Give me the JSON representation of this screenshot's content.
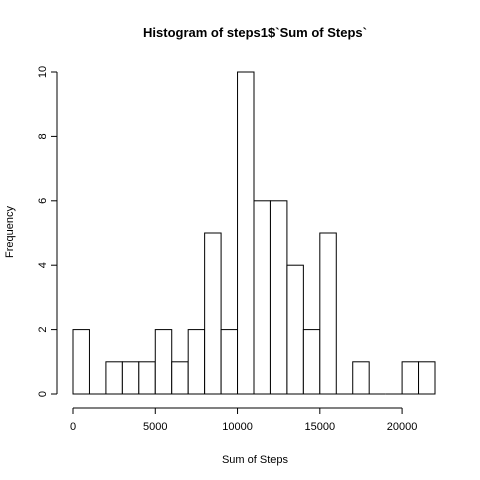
{
  "chart_data": {
    "type": "bar",
    "title": "Histogram of steps1$`Sum of Steps`",
    "xlabel": "Sum of Steps",
    "ylabel": "Frequency",
    "bin_width": 1000,
    "bin_starts": [
      0,
      1000,
      2000,
      3000,
      4000,
      5000,
      6000,
      7000,
      8000,
      9000,
      10000,
      11000,
      12000,
      13000,
      14000,
      15000,
      16000,
      17000,
      18000,
      19000,
      20000,
      21000
    ],
    "values": [
      2,
      0,
      1,
      1,
      1,
      2,
      1,
      2,
      5,
      2,
      10,
      6,
      6,
      4,
      2,
      5,
      0,
      1,
      0,
      0,
      1,
      1
    ],
    "xlim": [
      0,
      22000
    ],
    "ylim": [
      0,
      10
    ],
    "x_ticks": [
      0,
      5000,
      10000,
      15000,
      20000
    ],
    "y_ticks": [
      0,
      2,
      4,
      6,
      8,
      10
    ],
    "grid": false,
    "bar_fill": "#ffffff",
    "bar_stroke": "#000000"
  }
}
